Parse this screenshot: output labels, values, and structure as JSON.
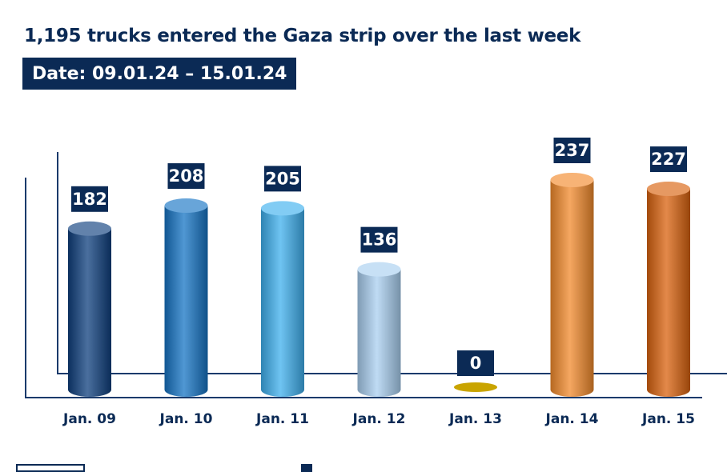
{
  "header": {
    "title": "1,195 trucks entered the Gaza strip over the last week",
    "date_range": "Date: 09.01.24 – 15.01.24"
  },
  "colors": {
    "label_bg": "#0b2a55",
    "axis": "#1a3a6b",
    "zero_disc": "#c9a400"
  },
  "chart_data": {
    "type": "bar",
    "title": "1,195 trucks entered the Gaza strip over the last week",
    "subtitle": "Date: 09.01.24 – 15.01.24",
    "xlabel": "",
    "ylabel": "",
    "categories": [
      "Jan. 09",
      "Jan. 10",
      "Jan. 11",
      "Jan. 12",
      "Jan. 13",
      "Jan. 14",
      "Jan. 15"
    ],
    "values": [
      182,
      208,
      205,
      136,
      0,
      237,
      227
    ],
    "bar_colors": [
      "#0e3f7d",
      "#1674c4",
      "#3fb0ee",
      "#a9cff0",
      "#c9a400",
      "#f28a2c",
      "#d9620e"
    ],
    "ylim": [
      0,
      237
    ],
    "grid": false,
    "data_labels": true
  }
}
